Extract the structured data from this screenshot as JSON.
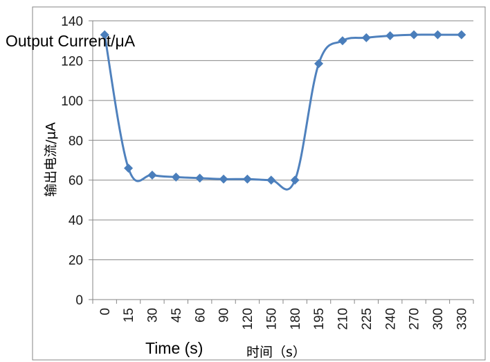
{
  "chart_data": {
    "type": "line",
    "categories": [
      "0",
      "15",
      "30",
      "45",
      "60",
      "90",
      "120",
      "150",
      "180",
      "195",
      "210",
      "225",
      "240",
      "270",
      "300",
      "330"
    ],
    "series": [
      {
        "values": [
          133,
          66,
          62.5,
          61.5,
          61,
          60.5,
          60.5,
          60,
          60,
          118.5,
          130,
          131.5,
          132.5,
          133,
          133,
          133
        ]
      }
    ],
    "ylim": [
      0,
      140
    ],
    "yticks": [
      0,
      20,
      40,
      60,
      80,
      100,
      120,
      140
    ],
    "xlabel_en": "Time (s)",
    "xlabel_zh": "时间（s）",
    "ylabel_en": "Output Current/μA",
    "ylabel_zh": "输出电流/μA",
    "grid": true,
    "colors": {
      "line": "#4f81bd",
      "marker": "#4a7ebb",
      "grid": "#868686",
      "axis": "#868686"
    }
  }
}
